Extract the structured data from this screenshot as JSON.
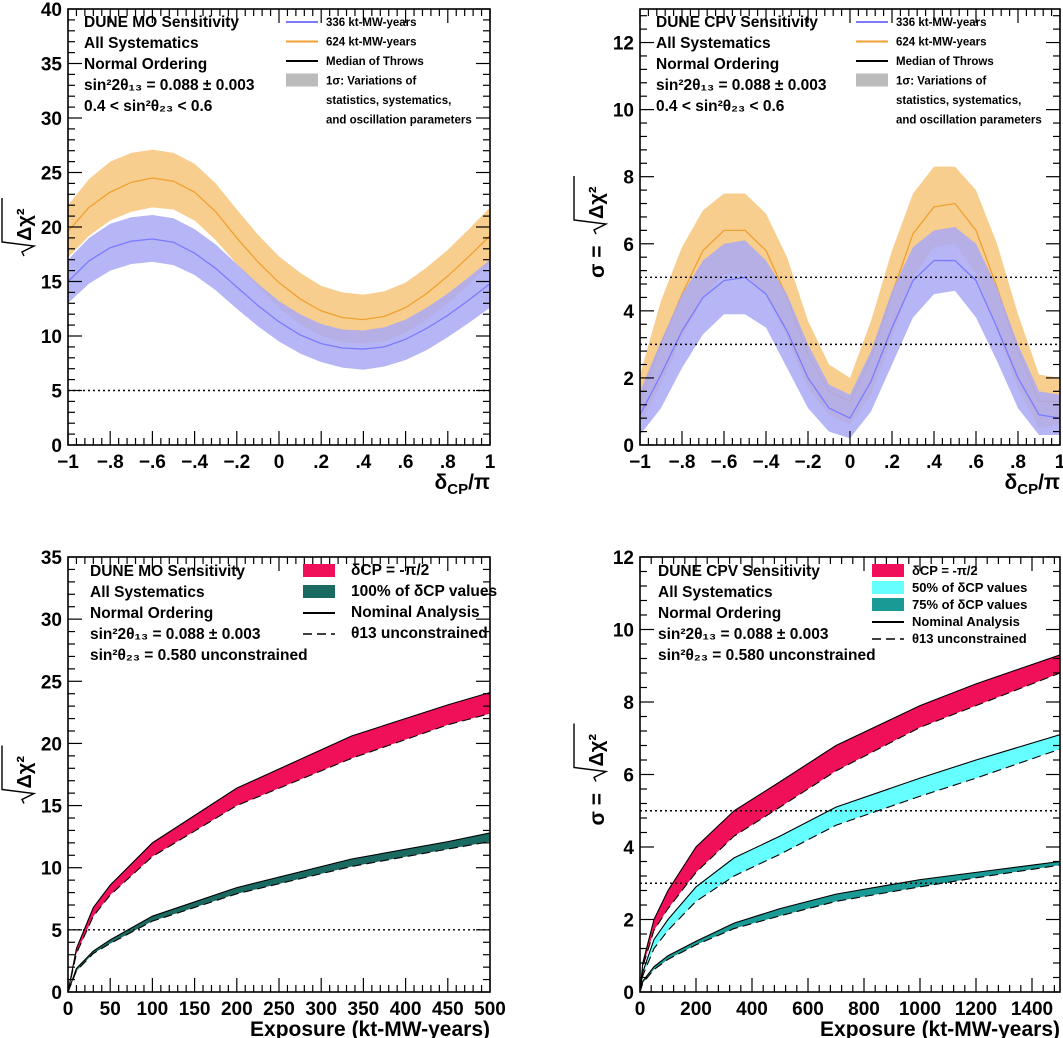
{
  "chart_data": [
    {
      "type": "area",
      "xlim": [
        -1,
        1
      ],
      "ylim": [
        0,
        40
      ],
      "xticks": [
        -1,
        -0.8,
        -0.6,
        -0.4,
        -0.2,
        0,
        0.2,
        0.4,
        0.6,
        0.8,
        1
      ],
      "yticks": [
        0,
        5,
        10,
        15,
        20,
        25,
        30,
        35,
        40
      ],
      "xlabel": {
        "main": "δ",
        "sub": "CP",
        "tail": "/π"
      },
      "ylabel": {
        "pre": "",
        "radicand": "Δχ²"
      },
      "info_lines": [
        "DUNE MO Sensitivity",
        "All Systematics",
        "Normal Ordering",
        "sin²2θ₁₃ = 0.088 ± 0.003",
        "0.4 < sin²θ₂₃ < 0.6"
      ],
      "legend": [
        {
          "label": "336 kt-MW-years",
          "type": "line",
          "color": "#7b7bff"
        },
        {
          "label": "624 kt-MW-years",
          "type": "line",
          "color": "#f0a030"
        },
        {
          "label": "Median of Throws",
          "type": "line",
          "color": "#000000"
        },
        {
          "label": "1σ: Variations of",
          "type": "box",
          "color": "#bbbbbb"
        },
        {
          "label": "statistics, systematics,",
          "type": "none"
        },
        {
          "label": "and oscillation parameters",
          "type": "none"
        }
      ],
      "reference_lines": [
        5
      ],
      "x": [
        -1,
        -0.9,
        -0.8,
        -0.7,
        -0.6,
        -0.5,
        -0.4,
        -0.3,
        -0.2,
        -0.1,
        0,
        0.1,
        0.2,
        0.3,
        0.4,
        0.5,
        0.6,
        0.7,
        0.8,
        0.9,
        1
      ],
      "series": [
        {
          "name": "624 kt-MW-years",
          "color": "#f0a030",
          "fill": "#f7c67a",
          "median": [
            19.6,
            21.8,
            23.2,
            24.1,
            24.5,
            24.2,
            23.2,
            21.4,
            19.0,
            16.8,
            14.9,
            13.4,
            12.3,
            11.7,
            11.5,
            11.8,
            12.6,
            13.9,
            15.5,
            17.3,
            19.2
          ],
          "lower": [
            17.2,
            19.2,
            20.6,
            21.4,
            21.8,
            21.6,
            20.6,
            18.8,
            16.6,
            14.5,
            12.6,
            11.1,
            10.0,
            9.4,
            9.3,
            9.5,
            10.3,
            11.5,
            13.0,
            14.7,
            16.6
          ],
          "upper": [
            22.0,
            24.4,
            26.0,
            26.8,
            27.1,
            26.8,
            25.8,
            24.0,
            21.6,
            19.3,
            17.3,
            15.8,
            14.6,
            14.0,
            13.8,
            14.1,
            14.9,
            16.3,
            17.9,
            19.8,
            21.8
          ]
        },
        {
          "name": "336 kt-MW-years",
          "color": "#7b7bff",
          "fill": "#a9a9f5",
          "median": [
            15.0,
            16.9,
            18.1,
            18.7,
            18.9,
            18.6,
            17.6,
            16.2,
            14.5,
            12.8,
            11.3,
            10.1,
            9.3,
            8.9,
            8.8,
            9.0,
            9.7,
            10.7,
            11.9,
            13.3,
            14.8
          ],
          "lower": [
            13.0,
            14.8,
            16.0,
            16.6,
            16.8,
            16.5,
            15.6,
            14.2,
            12.5,
            10.9,
            9.5,
            8.4,
            7.6,
            7.1,
            6.9,
            7.2,
            7.8,
            8.7,
            9.9,
            11.2,
            12.6
          ],
          "upper": [
            17.0,
            19.0,
            20.3,
            20.9,
            21.1,
            20.8,
            19.8,
            18.4,
            16.6,
            14.8,
            13.2,
            12.0,
            11.1,
            10.6,
            10.5,
            10.8,
            11.5,
            12.6,
            13.9,
            15.4,
            17.0
          ]
        }
      ]
    },
    {
      "type": "area",
      "xlim": [
        -1,
        1
      ],
      "ylim": [
        0,
        13
      ],
      "xticks": [
        -1,
        -0.8,
        -0.6,
        -0.4,
        -0.2,
        0,
        0.2,
        0.4,
        0.6,
        0.8,
        1
      ],
      "yticks": [
        0,
        2,
        4,
        6,
        8,
        10,
        12
      ],
      "xlabel": {
        "main": "δ",
        "sub": "CP",
        "tail": "/π"
      },
      "ylabel": {
        "pre": "σ = ",
        "radicand": "Δχ²"
      },
      "info_lines": [
        "DUNE CPV Sensitivity",
        "All Systematics",
        "Normal Ordering",
        "sin²2θ₁₃ = 0.088 ± 0.003",
        "0.4 < sin²θ₂₃ < 0.6"
      ],
      "legend": [
        {
          "label": "336 kt-MW-years",
          "type": "line",
          "color": "#7b7bff"
        },
        {
          "label": "624 kt-MW-years",
          "type": "line",
          "color": "#f0a030"
        },
        {
          "label": "Median of Throws",
          "type": "line",
          "color": "#000000"
        },
        {
          "label": "1σ: Variations of",
          "type": "box",
          "color": "#bbbbbb"
        },
        {
          "label": "statistics, systematics,",
          "type": "none"
        },
        {
          "label": "and oscillation parameters",
          "type": "none"
        }
      ],
      "reference_lines": [
        3,
        5
      ],
      "x": [
        -1,
        -0.9,
        -0.8,
        -0.7,
        -0.6,
        -0.5,
        -0.4,
        -0.3,
        -0.2,
        -0.1,
        0,
        0.1,
        0.2,
        0.3,
        0.4,
        0.5,
        0.6,
        0.7,
        0.8,
        0.9,
        1
      ],
      "series": [
        {
          "name": "624 kt-MW-years",
          "color": "#f0a030",
          "fill": "#f7c67a",
          "median": [
            1.3,
            3.0,
            4.5,
            5.8,
            6.4,
            6.4,
            5.8,
            4.4,
            2.7,
            1.6,
            1.3,
            2.6,
            4.5,
            6.3,
            7.1,
            7.2,
            6.4,
            4.7,
            2.8,
            1.3,
            1.3
          ],
          "lower": [
            0.6,
            1.8,
            3.2,
            4.4,
            5.1,
            5.1,
            4.5,
            3.2,
            1.7,
            0.9,
            0.6,
            1.5,
            3.2,
            5.0,
            5.9,
            6.0,
            5.1,
            3.4,
            1.7,
            0.5,
            0.6
          ],
          "upper": [
            2.1,
            4.3,
            5.9,
            7.0,
            7.5,
            7.5,
            6.9,
            5.6,
            3.7,
            2.4,
            2.0,
            3.7,
            5.8,
            7.5,
            8.3,
            8.3,
            7.6,
            6.0,
            3.9,
            2.1,
            2.0
          ]
        },
        {
          "name": "336 kt-MW-years",
          "color": "#7b7bff",
          "fill": "#a9a9f5",
          "median": [
            0.9,
            2.1,
            3.4,
            4.4,
            4.9,
            5.0,
            4.5,
            3.4,
            2.0,
            1.1,
            0.8,
            1.9,
            3.5,
            4.9,
            5.5,
            5.5,
            4.9,
            3.5,
            2.0,
            0.9,
            0.8
          ],
          "lower": [
            0.3,
            1.1,
            2.3,
            3.3,
            3.9,
            3.9,
            3.5,
            2.3,
            1.1,
            0.4,
            0.2,
            1.0,
            2.4,
            3.8,
            4.5,
            4.6,
            3.8,
            2.5,
            1.1,
            0.3,
            0.3
          ],
          "upper": [
            1.6,
            3.1,
            4.5,
            5.5,
            6.0,
            6.1,
            5.5,
            4.5,
            3.0,
            1.8,
            1.5,
            2.8,
            4.6,
            5.9,
            6.4,
            6.5,
            6.0,
            4.7,
            3.0,
            1.6,
            1.5
          ]
        }
      ]
    },
    {
      "type": "area",
      "xlim": [
        0,
        500
      ],
      "ylim": [
        0,
        35
      ],
      "xticks": [
        0,
        50,
        100,
        150,
        200,
        250,
        300,
        350,
        400,
        450,
        500
      ],
      "yticks": [
        0,
        5,
        10,
        15,
        20,
        25,
        30,
        35
      ],
      "xlabel": {
        "main": "Exposure (kt-MW-years)",
        "sub": "",
        "tail": ""
      },
      "ylabel": {
        "pre": "",
        "radicand": "Δχ²"
      },
      "info_lines": [
        "DUNE MO Sensitivity",
        "All Systematics",
        "Normal Ordering",
        "sin²2θ₁₃ = 0.088 ± 0.003",
        "sin²θ₂₃ = 0.580 unconstrained"
      ],
      "legend": [
        {
          "label": "δCP = -π/2",
          "type": "box",
          "color": "#f0105a"
        },
        {
          "label": "100% of δCP values",
          "type": "box",
          "color": "#1a6a62"
        },
        {
          "label": "Nominal Analysis",
          "type": "line",
          "color": "#000000"
        },
        {
          "label": "θ13 unconstrained",
          "type": "dash",
          "color": "#000000"
        }
      ],
      "reference_lines": [
        5
      ],
      "x": [
        0,
        10,
        30,
        50,
        100,
        200,
        336,
        450,
        500
      ],
      "series": [
        {
          "name": "δCP = -π/2",
          "color": "#f0105a",
          "nominal": [
            0,
            3.5,
            6.8,
            8.6,
            12.0,
            16.4,
            20.6,
            23.1,
            24.1
          ],
          "unconstrained": [
            0,
            3.1,
            6.1,
            7.8,
            10.9,
            15.0,
            18.8,
            21.5,
            22.4
          ]
        },
        {
          "name": "100% of δCP values",
          "color": "#1a6a62",
          "nominal": [
            0,
            1.9,
            3.3,
            4.2,
            6.1,
            8.4,
            10.7,
            12.1,
            12.8
          ],
          "unconstrained": [
            0,
            1.7,
            3.1,
            3.9,
            5.7,
            7.9,
            10.1,
            11.5,
            12.1
          ]
        }
      ]
    },
    {
      "type": "area",
      "xlim": [
        0,
        1500
      ],
      "ylim": [
        0,
        12
      ],
      "xticks": [
        0,
        200,
        400,
        600,
        800,
        1000,
        1200,
        1400
      ],
      "yticks": [
        0,
        2,
        4,
        6,
        8,
        10,
        12
      ],
      "xlabel": {
        "main": "Exposure (kt-MW-years)",
        "sub": "",
        "tail": ""
      },
      "ylabel": {
        "pre": "σ = ",
        "radicand": "Δχ²"
      },
      "info_lines": [
        "DUNE CPV Sensitivity",
        "All Systematics",
        "Normal Ordering",
        "sin²2θ₁₃ = 0.088 ± 0.003",
        "sin²θ₂₃ = 0.580 unconstrained"
      ],
      "legend": [
        {
          "label": "δCP = -π/2",
          "type": "box",
          "color": "#f0105a"
        },
        {
          "label": "50% of δCP values",
          "type": "box",
          "color": "#66ffff"
        },
        {
          "label": "75% of δCP values",
          "type": "box",
          "color": "#1a9a94"
        },
        {
          "label": "Nominal Analysis",
          "type": "line",
          "color": "#000000"
        },
        {
          "label": "θ13 unconstrained",
          "type": "dash",
          "color": "#000000"
        }
      ],
      "reference_lines": [
        3,
        5
      ],
      "x": [
        0,
        10,
        50,
        100,
        200,
        336,
        500,
        700,
        1000,
        1200,
        1500
      ],
      "series": [
        {
          "name": "δCP = -π/2",
          "color": "#f0105a",
          "nominal": [
            0,
            0.8,
            2.0,
            2.8,
            4.0,
            5.0,
            5.8,
            6.8,
            7.9,
            8.5,
            9.3
          ],
          "unconstrained": [
            0,
            0.7,
            1.7,
            2.3,
            3.3,
            4.3,
            5.1,
            6.1,
            7.3,
            7.9,
            8.8
          ]
        },
        {
          "name": "50% of δCP values",
          "color": "#66ffff",
          "nominal": [
            0,
            0.55,
            1.45,
            2.0,
            2.9,
            3.7,
            4.3,
            5.1,
            5.9,
            6.4,
            7.1
          ],
          "unconstrained": [
            0,
            0.45,
            1.2,
            1.7,
            2.5,
            3.2,
            3.8,
            4.6,
            5.4,
            5.9,
            6.7
          ]
        },
        {
          "name": "75% of δCP values",
          "color": "#1a9a94",
          "nominal": [
            0,
            0.3,
            0.7,
            1.0,
            1.4,
            1.9,
            2.3,
            2.7,
            3.1,
            3.3,
            3.6
          ],
          "unconstrained": [
            0,
            0.25,
            0.62,
            0.9,
            1.3,
            1.75,
            2.1,
            2.5,
            2.9,
            3.15,
            3.5
          ]
        }
      ]
    }
  ]
}
